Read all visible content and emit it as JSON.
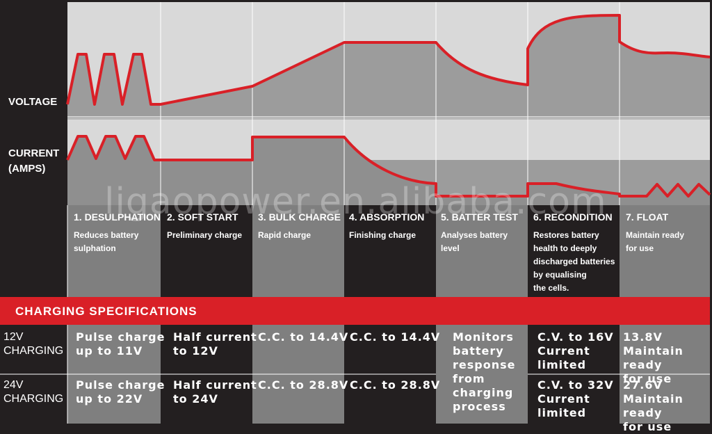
{
  "rows": {
    "voltage": "VOLTAGE",
    "current": "CURRENT\n(AMPS)"
  },
  "watermark": "ligaopower.en.alibaba.com",
  "stages": [
    {
      "title": "1. DESULPHATION",
      "desc": "Reduces battery\nsulphation"
    },
    {
      "title": "2. SOFT START",
      "desc": "Preliminary charge"
    },
    {
      "title": "3. BULK CHARGE",
      "desc": "Rapid charge"
    },
    {
      "title": "4. ABSORPTION",
      "desc": "Finishing charge"
    },
    {
      "title": "5. BATTER TEST",
      "desc": "Analyses battery\nlevel"
    },
    {
      "title": "6. RECONDITION",
      "desc": "Restores battery\nhealth to deeply\ndischarged batteries\nby equalising\nthe cells."
    },
    {
      "title": "7. FLOAT",
      "desc": "Maintain ready\nfor use"
    }
  ],
  "specs": {
    "header": "CHARGING SPECIFICATIONS",
    "row12": {
      "label": "12V\nCHARGING",
      "cells": [
        "Pulse charge\nup to 11V",
        "Half current\nto 12V",
        "C.C. to 14.4V",
        "C.C. to 14.4V",
        "",
        "C.V. to 16V\nCurrent\nlimited",
        "13.8V\nMaintain ready\nfor use"
      ]
    },
    "row24": {
      "label": "24V\nCHARGING",
      "cells": [
        "Pulse charge\nup to 22V",
        "Half current\nto 24V",
        "C.C. to 28.8V",
        "C.C. to 28.8V",
        "",
        "C.V. to 32V\nCurrent\nlimited",
        "27.6V\nMaintain ready\nfor use"
      ]
    },
    "battery_test": "Monitors\nbattery\nresponse\nfrom\ncharging\nprocess"
  },
  "colors": {
    "curve": "#d92027",
    "spec_bar": "#d92027",
    "background": "#231f20"
  }
}
